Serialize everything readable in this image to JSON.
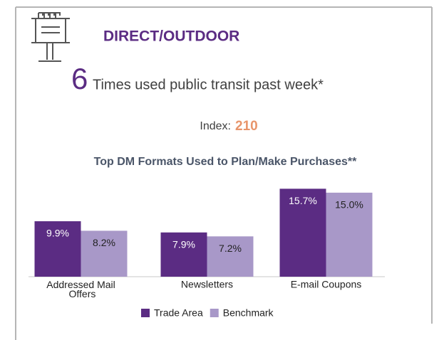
{
  "header": {
    "title": "DIRECT/OUTDOOR",
    "stat": "6",
    "stat_text": "Times used public transit past week*",
    "index_label": "Index:",
    "index_value": "210"
  },
  "chart_data": {
    "type": "bar",
    "title": "Top DM Formats Used to Plan/Make Purchases**",
    "categories": [
      "Addressed Mail Offers",
      "Newsletters",
      "E-mail Coupons"
    ],
    "series": [
      {
        "name": "Trade Area",
        "color": "#5b2c83",
        "values": [
          9.9,
          7.9,
          15.7
        ],
        "value_labels": [
          "9.9%",
          "7.9%",
          "15.7%"
        ]
      },
      {
        "name": "Benchmark",
        "color": "#a898c8",
        "values": [
          8.2,
          7.2,
          15.0
        ],
        "value_labels": [
          "8.2%",
          "7.2%",
          "15.0%"
        ]
      }
    ],
    "ylim": [
      0,
      16
    ]
  }
}
